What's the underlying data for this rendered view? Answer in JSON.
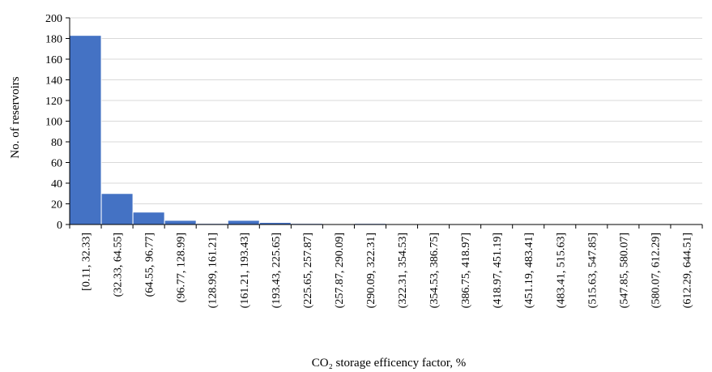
{
  "chart_data": {
    "type": "bar",
    "title": "",
    "xlabel": "CO₂ storage efficency factor, %",
    "ylabel": "No. of reservoirs",
    "ylim": [
      0,
      200
    ],
    "yticks": [
      0,
      20,
      40,
      60,
      80,
      100,
      120,
      140,
      160,
      180,
      200
    ],
    "grid": true,
    "categories": [
      "[0.11, 32.33]",
      "(32.33, 64.55]",
      "(64.55, 96.77]",
      "(96.77, 128.99]",
      "(128.99, 161.21]",
      "(161.21, 193.43]",
      "(193.43, 225.65]",
      "(225.65, 257.87]",
      "(257.87, 290.09]",
      "(290.09, 322.31]",
      "(322.31, 354.53]",
      "(354.53, 386.75]",
      "(386.75, 418.97]",
      "(418.97, 451.19]",
      "(451.19, 483.41]",
      "(483.41, 515.63]",
      "(515.63, 547.85]",
      "(547.85, 580.07]",
      "(580.07, 612.29]",
      "(612.29, 644.51]"
    ],
    "values": [
      183,
      30,
      12,
      4,
      1,
      4,
      2,
      1,
      0,
      1,
      0,
      0,
      0,
      0,
      0,
      0,
      0,
      0,
      0,
      0
    ],
    "colors": {
      "bar": "#4472C4",
      "grid": "#d9d9d9",
      "axis": "#000000"
    }
  }
}
